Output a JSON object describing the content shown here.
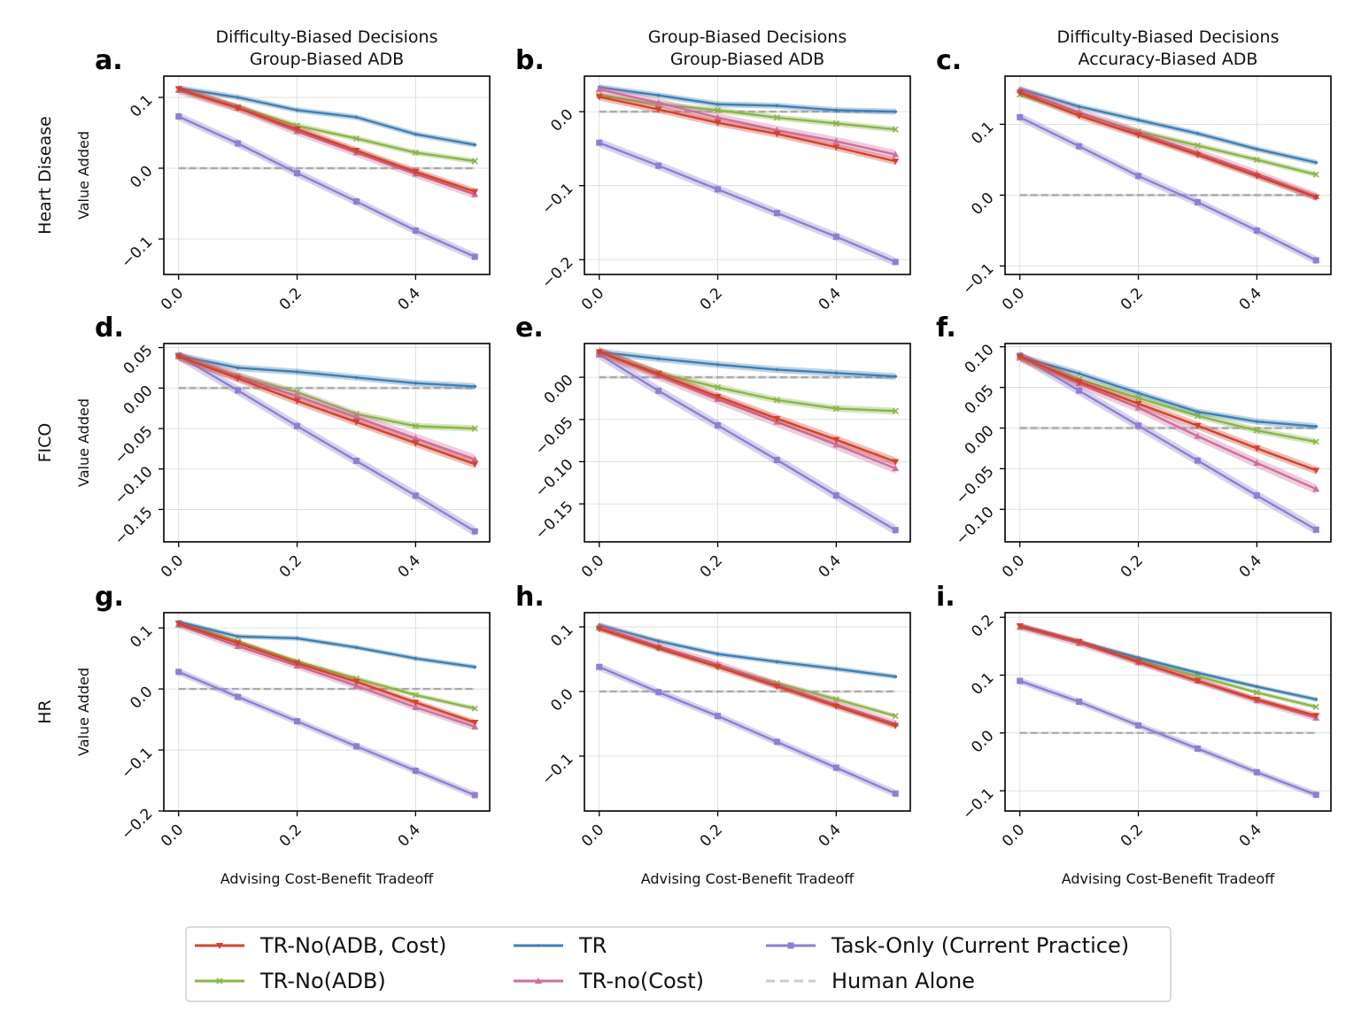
{
  "column_titles": [
    [
      "Difficulty-Biased Decisions",
      "Group-Biased ADB"
    ],
    [
      "Group-Biased Decisions",
      "Group-Biased ADB"
    ],
    [
      "Difficulty-Biased Decisions",
      "Accuracy-Biased ADB"
    ]
  ],
  "row_labels": [
    "Heart Disease",
    "FICO",
    "HR"
  ],
  "ylabel": "Value Added",
  "xlabel": "Advising Cost-Benefit Tradeoff",
  "panel_letters": [
    "a.",
    "b.",
    "c.",
    "d.",
    "e.",
    "f.",
    "g.",
    "h.",
    "i."
  ],
  "x_ticks": [
    "0.0",
    "0.2",
    "0.4"
  ],
  "colors": {
    "TR-No(ADB, Cost)": "#d1432f",
    "TR-No(ADB)": "#8ab54a",
    "TR": "#3f7fb3",
    "TR-no(Cost)": "#cc6f9f",
    "Task-Only (Current Practice)": "#8e7fd0",
    "Human Alone": "#bdbdbd"
  },
  "legend": [
    {
      "label": "TR-No(ADB, Cost)",
      "marker": "tri-down"
    },
    {
      "label": "TR-No(ADB)",
      "marker": "x"
    },
    {
      "label": "TR",
      "marker": "dot"
    },
    {
      "label": "TR-no(Cost)",
      "marker": "tri-up"
    },
    {
      "label": "Task-Only (Current Practice)",
      "marker": "square"
    },
    {
      "label": "Human Alone",
      "marker": "dashed"
    }
  ],
  "chart_data": [
    {
      "type": "line",
      "panel": "a.",
      "ylim": [
        -0.15,
        0.13
      ],
      "yticks": [
        "0.1",
        "0.0",
        "-0.1"
      ],
      "ytick_values": [
        0.1,
        0.0,
        -0.1
      ],
      "x": [
        0.0,
        0.1,
        0.2,
        0.3,
        0.4,
        0.5
      ],
      "series": [
        {
          "name": "TR-No(ADB, Cost)",
          "values": [
            0.112,
            0.085,
            0.055,
            0.025,
            -0.005,
            -0.033
          ]
        },
        {
          "name": "TR-No(ADB)",
          "values": [
            0.112,
            0.087,
            0.06,
            0.042,
            0.022,
            0.01
          ]
        },
        {
          "name": "TR",
          "values": [
            0.113,
            0.1,
            0.082,
            0.072,
            0.048,
            0.033
          ]
        },
        {
          "name": "TR-no(Cost)",
          "values": [
            0.11,
            0.085,
            0.052,
            0.022,
            -0.008,
            -0.037
          ]
        },
        {
          "name": "Task-Only (Current Practice)",
          "values": [
            0.073,
            0.035,
            -0.007,
            -0.047,
            -0.088,
            -0.125
          ]
        },
        {
          "name": "Human Alone",
          "values": [
            0.0,
            0.0,
            0.0,
            0.0,
            0.0,
            0.0
          ]
        }
      ]
    },
    {
      "type": "line",
      "panel": "b.",
      "ylim": [
        -0.22,
        0.048
      ],
      "yticks": [
        "0.0",
        "-0.1",
        "-0.2"
      ],
      "ytick_values": [
        0.0,
        -0.1,
        -0.2
      ],
      "x": [
        0.0,
        0.1,
        0.2,
        0.3,
        0.4,
        0.5
      ],
      "series": [
        {
          "name": "TR-No(ADB, Cost)",
          "values": [
            0.02,
            0.003,
            -0.015,
            -0.03,
            -0.048,
            -0.067
          ]
        },
        {
          "name": "TR-No(ADB)",
          "values": [
            0.022,
            0.01,
            0.002,
            -0.008,
            -0.016,
            -0.024
          ]
        },
        {
          "name": "TR",
          "values": [
            0.033,
            0.022,
            0.01,
            0.008,
            0.002,
            0.0
          ]
        },
        {
          "name": "TR-no(Cost)",
          "values": [
            0.03,
            0.012,
            -0.008,
            -0.025,
            -0.04,
            -0.058
          ]
        },
        {
          "name": "Task-Only (Current Practice)",
          "values": [
            -0.042,
            -0.073,
            -0.105,
            -0.137,
            -0.169,
            -0.203
          ]
        },
        {
          "name": "Human Alone",
          "values": [
            0.0,
            0.0,
            0.0,
            0.0,
            0.0,
            0.0
          ]
        }
      ]
    },
    {
      "type": "line",
      "panel": "c.",
      "ylim": [
        -0.112,
        0.168
      ],
      "yticks": [
        "0.1",
        "0.0",
        "-0.1"
      ],
      "ytick_values": [
        0.1,
        0.0,
        -0.1
      ],
      "x": [
        0.0,
        0.1,
        0.2,
        0.3,
        0.4,
        0.5
      ],
      "series": [
        {
          "name": "TR-No(ADB, Cost)",
          "values": [
            0.145,
            0.112,
            0.085,
            0.057,
            0.027,
            -0.003
          ]
        },
        {
          "name": "TR-No(ADB)",
          "values": [
            0.142,
            0.115,
            0.09,
            0.07,
            0.05,
            0.029
          ]
        },
        {
          "name": "TR",
          "values": [
            0.15,
            0.125,
            0.106,
            0.087,
            0.065,
            0.046
          ]
        },
        {
          "name": "TR-no(Cost)",
          "values": [
            0.148,
            0.117,
            0.088,
            0.06,
            0.03,
            -0.002
          ]
        },
        {
          "name": "Task-Only (Current Practice)",
          "values": [
            0.11,
            0.069,
            0.027,
            -0.01,
            -0.05,
            -0.092
          ]
        },
        {
          "name": "Human Alone",
          "values": [
            0.0,
            0.0,
            0.0,
            0.0,
            0.0,
            0.0
          ]
        }
      ]
    },
    {
      "type": "line",
      "panel": "d.",
      "ylim": [
        -0.19,
        0.055
      ],
      "yticks": [
        "0.05",
        "0.00",
        "-0.05",
        "-0.10",
        "-0.15"
      ],
      "ytick_values": [
        0.05,
        0.0,
        -0.05,
        -0.1,
        -0.15
      ],
      "x": [
        0.0,
        0.1,
        0.2,
        0.3,
        0.4,
        0.5
      ],
      "series": [
        {
          "name": "TR-No(ADB, Cost)",
          "values": [
            0.039,
            0.012,
            -0.016,
            -0.042,
            -0.068,
            -0.094
          ]
        },
        {
          "name": "TR-No(ADB)",
          "values": [
            0.039,
            0.015,
            -0.005,
            -0.032,
            -0.047,
            -0.05
          ]
        },
        {
          "name": "TR",
          "values": [
            0.04,
            0.025,
            0.02,
            0.013,
            0.006,
            0.002
          ]
        },
        {
          "name": "TR-no(Cost)",
          "values": [
            0.039,
            0.014,
            -0.01,
            -0.036,
            -0.062,
            -0.088
          ]
        },
        {
          "name": "Task-Only (Current Practice)",
          "values": [
            0.04,
            -0.003,
            -0.047,
            -0.09,
            -0.133,
            -0.177
          ]
        },
        {
          "name": "Human Alone",
          "values": [
            0.0,
            0.0,
            0.0,
            0.0,
            0.0,
            0.0
          ]
        }
      ]
    },
    {
      "type": "line",
      "panel": "e.",
      "ylim": [
        -0.195,
        0.04
      ],
      "yticks": [
        "0.00",
        "-0.05",
        "-0.10",
        "-0.15"
      ],
      "ytick_values": [
        0.0,
        -0.05,
        -0.1,
        -0.15
      ],
      "x": [
        0.0,
        0.1,
        0.2,
        0.3,
        0.4,
        0.5
      ],
      "series": [
        {
          "name": "TR-No(ADB, Cost)",
          "values": [
            0.03,
            0.004,
            -0.023,
            -0.049,
            -0.074,
            -0.1
          ]
        },
        {
          "name": "TR-No(ADB)",
          "values": [
            0.03,
            0.005,
            -0.012,
            -0.027,
            -0.037,
            -0.04
          ]
        },
        {
          "name": "TR",
          "values": [
            0.03,
            0.022,
            0.015,
            0.009,
            0.005,
            0.001
          ]
        },
        {
          "name": "TR-no(Cost)",
          "values": [
            0.03,
            0.002,
            -0.026,
            -0.053,
            -0.08,
            -0.108
          ]
        },
        {
          "name": "Task-Only (Current Practice)",
          "values": [
            0.027,
            -0.016,
            -0.057,
            -0.098,
            -0.14,
            -0.181
          ]
        },
        {
          "name": "Human Alone",
          "values": [
            0.0,
            0.0,
            0.0,
            0.0,
            0.0,
            0.0
          ]
        }
      ]
    },
    {
      "type": "line",
      "panel": "f.",
      "ylim": [
        -0.14,
        0.104
      ],
      "yticks": [
        "0.10",
        "0.05",
        "0.00",
        "-0.05",
        "-0.10"
      ],
      "ytick_values": [
        0.1,
        0.05,
        0.0,
        -0.05,
        -0.1
      ],
      "x": [
        0.0,
        0.1,
        0.2,
        0.3,
        0.4,
        0.5
      ],
      "series": [
        {
          "name": "TR-No(ADB, Cost)",
          "values": [
            0.088,
            0.057,
            0.03,
            0.003,
            -0.025,
            -0.052
          ]
        },
        {
          "name": "TR-No(ADB)",
          "values": [
            0.086,
            0.06,
            0.037,
            0.015,
            -0.003,
            -0.017
          ]
        },
        {
          "name": "TR",
          "values": [
            0.088,
            0.067,
            0.043,
            0.02,
            0.008,
            0.002
          ]
        },
        {
          "name": "TR-no(Cost)",
          "values": [
            0.087,
            0.055,
            0.025,
            -0.01,
            -0.043,
            -0.075
          ]
        },
        {
          "name": "Task-Only (Current Practice)",
          "values": [
            0.089,
            0.046,
            0.003,
            -0.04,
            -0.083,
            -0.125
          ]
        },
        {
          "name": "Human Alone",
          "values": [
            0.0,
            0.0,
            0.0,
            0.0,
            0.0,
            0.0
          ]
        }
      ]
    },
    {
      "type": "line",
      "panel": "g.",
      "ylim": [
        -0.2,
        0.125
      ],
      "yticks": [
        "0.1",
        "0.0",
        "-0.1",
        "-0.2"
      ],
      "ytick_values": [
        0.1,
        0.0,
        -0.1,
        -0.2
      ],
      "x": [
        0.0,
        0.1,
        0.2,
        0.3,
        0.4,
        0.5
      ],
      "series": [
        {
          "name": "TR-No(ADB, Cost)",
          "values": [
            0.107,
            0.075,
            0.042,
            0.012,
            -0.022,
            -0.055
          ]
        },
        {
          "name": "TR-No(ADB)",
          "values": [
            0.108,
            0.078,
            0.045,
            0.017,
            -0.01,
            -0.032
          ]
        },
        {
          "name": "TR",
          "values": [
            0.11,
            0.086,
            0.083,
            0.068,
            0.05,
            0.036
          ]
        },
        {
          "name": "TR-no(Cost)",
          "values": [
            0.105,
            0.07,
            0.038,
            0.005,
            -0.03,
            -0.062
          ]
        },
        {
          "name": "Task-Only (Current Practice)",
          "values": [
            0.028,
            -0.013,
            -0.053,
            -0.094,
            -0.134,
            -0.174
          ]
        },
        {
          "name": "Human Alone",
          "values": [
            0.0,
            0.0,
            0.0,
            0.0,
            0.0,
            0.0
          ]
        }
      ]
    },
    {
      "type": "line",
      "panel": "h.",
      "ylim": [
        -0.185,
        0.122
      ],
      "yticks": [
        "0.1",
        "0.0",
        "-0.1"
      ],
      "ytick_values": [
        0.1,
        0.0,
        -0.1
      ],
      "x": [
        0.0,
        0.1,
        0.2,
        0.3,
        0.4,
        0.5
      ],
      "series": [
        {
          "name": "TR-No(ADB, Cost)",
          "values": [
            0.097,
            0.067,
            0.038,
            0.008,
            -0.023,
            -0.053
          ]
        },
        {
          "name": "TR-No(ADB)",
          "values": [
            0.098,
            0.068,
            0.04,
            0.013,
            -0.012,
            -0.038
          ]
        },
        {
          "name": "TR",
          "values": [
            0.103,
            0.078,
            0.058,
            0.046,
            0.035,
            0.023
          ]
        },
        {
          "name": "TR-no(Cost)",
          "values": [
            0.1,
            0.07,
            0.042,
            0.01,
            -0.02,
            -0.05
          ]
        },
        {
          "name": "Task-Only (Current Practice)",
          "values": [
            0.038,
            -0.001,
            -0.038,
            -0.078,
            -0.118,
            -0.158
          ]
        },
        {
          "name": "Human Alone",
          "values": [
            0.0,
            0.0,
            0.0,
            0.0,
            0.0,
            0.0
          ]
        }
      ]
    },
    {
      "type": "line",
      "panel": "i.",
      "ylim": [
        -0.135,
        0.208
      ],
      "yticks": [
        "0.2",
        "0.1",
        "0.0",
        "-0.1"
      ],
      "ytick_values": [
        0.2,
        0.1,
        0.0,
        -0.1
      ],
      "x": [
        0.0,
        0.1,
        0.2,
        0.3,
        0.4,
        0.5
      ],
      "series": [
        {
          "name": "TR-No(ADB, Cost)",
          "values": [
            0.185,
            0.158,
            0.123,
            0.09,
            0.058,
            0.03
          ]
        },
        {
          "name": "TR-No(ADB)",
          "values": [
            0.184,
            0.157,
            0.126,
            0.098,
            0.07,
            0.045
          ]
        },
        {
          "name": "TR",
          "values": [
            0.186,
            0.158,
            0.13,
            0.104,
            0.08,
            0.058
          ]
        },
        {
          "name": "TR-no(Cost)",
          "values": [
            0.183,
            0.155,
            0.122,
            0.09,
            0.056,
            0.026
          ]
        },
        {
          "name": "Task-Only (Current Practice)",
          "values": [
            0.09,
            0.054,
            0.013,
            -0.027,
            -0.068,
            -0.107
          ]
        },
        {
          "name": "Human Alone",
          "values": [
            0.0,
            0.0,
            0.0,
            0.0,
            0.0,
            0.0
          ]
        }
      ]
    }
  ]
}
